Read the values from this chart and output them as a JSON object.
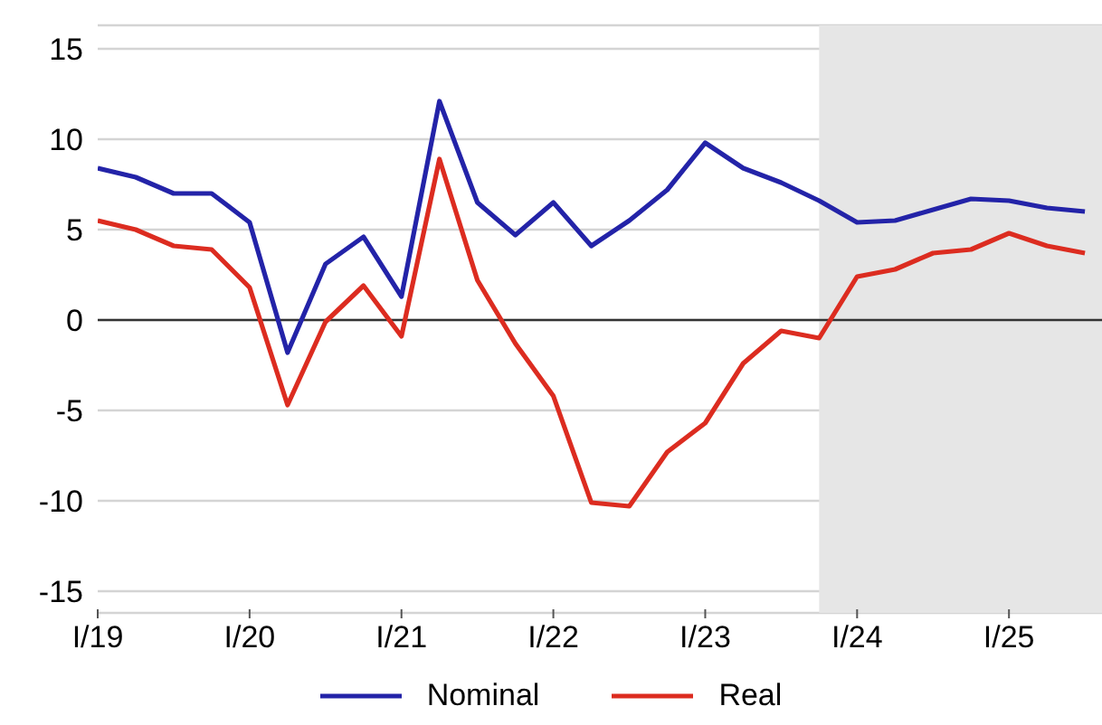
{
  "chart_data": {
    "type": "line",
    "categories": [
      "I/19",
      null,
      null,
      null,
      "I/20",
      null,
      null,
      null,
      "I/21",
      null,
      null,
      null,
      "I/22",
      null,
      null,
      null,
      "I/23",
      null,
      null,
      null,
      "I/24",
      null,
      null,
      null,
      "I/25",
      null,
      null
    ],
    "series": [
      {
        "name": "Nominal",
        "color": "#2323a8",
        "values": [
          8.4,
          7.9,
          7.0,
          7.0,
          5.4,
          -1.8,
          3.1,
          4.6,
          1.3,
          12.1,
          6.5,
          4.7,
          6.5,
          4.1,
          5.5,
          7.2,
          9.8,
          8.4,
          7.6,
          6.6,
          5.4,
          5.5,
          6.1,
          6.7,
          6.6,
          6.2,
          6.0
        ]
      },
      {
        "name": "Real",
        "color": "#dc2c20",
        "values": [
          5.5,
          5.0,
          4.1,
          3.9,
          1.8,
          -4.7,
          -0.1,
          1.9,
          -0.9,
          8.9,
          2.2,
          -1.3,
          -4.2,
          -10.1,
          -10.3,
          -7.3,
          -5.7,
          -2.4,
          -0.6,
          -1.0,
          2.4,
          2.8,
          3.7,
          3.9,
          4.8,
          4.1,
          3.7
        ]
      }
    ],
    "ylim": [
      -16.2,
      16.3
    ],
    "yticks": [
      -15,
      -10,
      -5,
      0,
      5,
      10,
      15
    ],
    "grid": "y",
    "legend": "bottom",
    "marker": "none",
    "line_style": "solid",
    "ref_lines": [
      {
        "axis": "y",
        "value": 0,
        "color": "#333333"
      }
    ]
  }
}
